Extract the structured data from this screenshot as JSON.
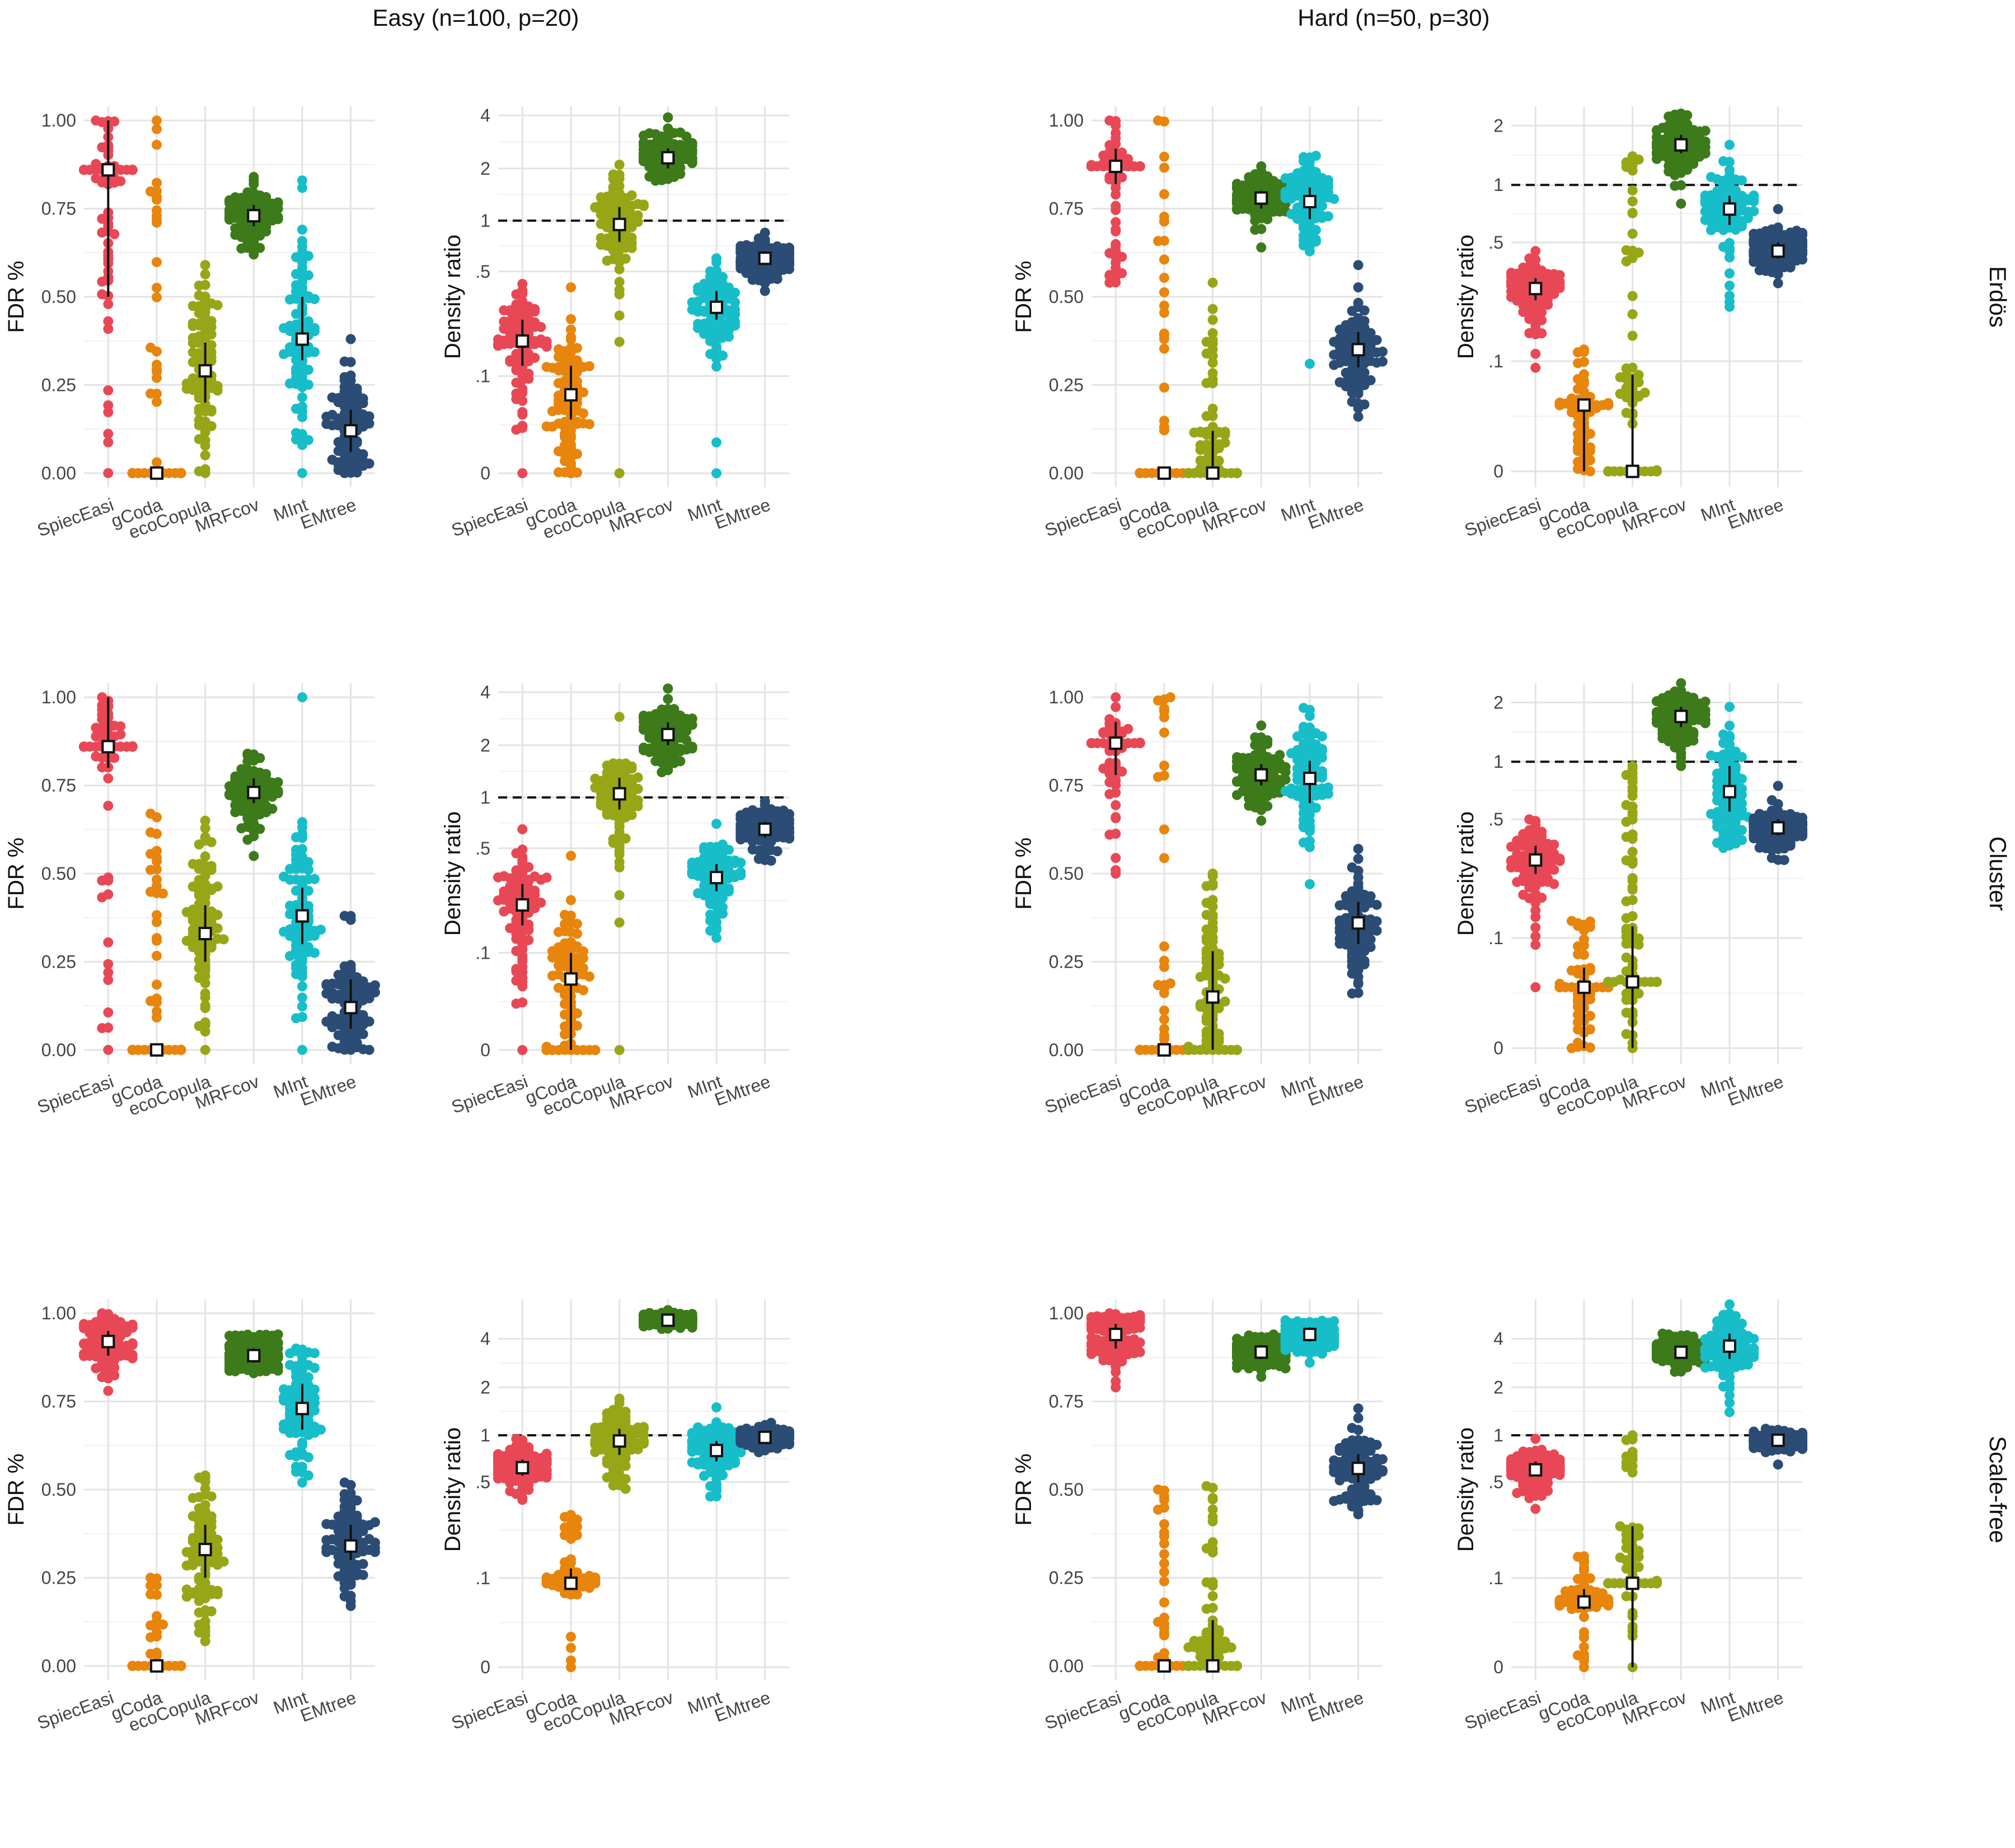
{
  "figure": {
    "column_titles": [
      "Easy (n=100, p=20)",
      "Hard (n=50, p=30)"
    ],
    "row_titles": [
      "Erdös",
      "Cluster",
      "Scale-free"
    ]
  },
  "chart_data": {
    "type": "scatter",
    "subtype": "beeswarm with median and interquartile range",
    "methods": [
      "SpiecEasi",
      "gCoda",
      "ecoCopula",
      "MRFcov",
      "MInt",
      "EMtree"
    ],
    "method_colors": [
      "#E84855",
      "#E8850C",
      "#97A617",
      "#3D7A1A",
      "#17BEC9",
      "#2B4C74"
    ],
    "reference_line": {
      "panel": "Density ratio",
      "y": 1,
      "style": "dashed"
    },
    "axes": {
      "fdr": {
        "ylabel": "FDR %",
        "ylim": [
          0,
          1
        ],
        "ticks": [
          "0.00",
          "0.25",
          "0.50",
          "0.75",
          "1.00"
        ],
        "scale": "linear"
      },
      "density": {
        "ylabel": "Density ratio",
        "scale": "log(x + offset)",
        "tick_labels": [
          "0",
          ".1",
          ".5",
          "1",
          "2",
          "4"
        ]
      }
    },
    "panels": [
      {
        "row": "Erdös",
        "column": "Easy (n=100, p=20)",
        "metric": "fdr",
        "ylim": [
          0,
          1
        ],
        "groups": [
          {
            "method": "SpiecEasi",
            "median": 0.86,
            "q1": 0.5,
            "q3": 1.0,
            "min": 0.0,
            "max": 1.0,
            "spread": "spike"
          },
          {
            "method": "gCoda",
            "median": 0.0,
            "q1": 0.0,
            "q3": 0.0,
            "min": 0.0,
            "max": 1.0,
            "spread": "spike"
          },
          {
            "method": "ecoCopula",
            "median": 0.29,
            "q1": 0.2,
            "q3": 0.37,
            "min": 0.0,
            "max": 0.59,
            "spread": "spread"
          },
          {
            "method": "MRFcov",
            "median": 0.73,
            "q1": 0.7,
            "q3": 0.76,
            "min": 0.62,
            "max": 0.84,
            "spread": "dense"
          },
          {
            "method": "MInt",
            "median": 0.38,
            "q1": 0.32,
            "q3": 0.5,
            "min": 0.0,
            "max": 0.83,
            "spread": "spread"
          },
          {
            "method": "EMtree",
            "median": 0.12,
            "q1": 0.06,
            "q3": 0.18,
            "min": 0.0,
            "max": 0.38,
            "spread": "dense"
          }
        ]
      },
      {
        "row": "Erdös",
        "column": "Easy (n=100, p=20)",
        "metric": "density",
        "yticks": [
          ".1",
          ".5",
          "1",
          "2",
          "4"
        ],
        "ylim_top": 4.5,
        "groups": [
          {
            "method": "SpiecEasi",
            "median": 0.18,
            "q1": 0.12,
            "q3": 0.25,
            "min": 0.0,
            "max": 0.42,
            "spread": "dense"
          },
          {
            "method": "gCoda",
            "median": 0.07,
            "q1": 0.04,
            "q3": 0.12,
            "min": 0.0,
            "max": 0.4,
            "spread": "spread"
          },
          {
            "method": "ecoCopula",
            "median": 0.95,
            "q1": 0.75,
            "q3": 1.2,
            "min": 0.0,
            "max": 2.1,
            "spread": "spread"
          },
          {
            "method": "MRFcov",
            "median": 2.3,
            "q1": 2.0,
            "q3": 2.6,
            "min": 1.7,
            "max": 3.9,
            "spread": "dense"
          },
          {
            "method": "MInt",
            "median": 0.3,
            "q1": 0.25,
            "q3": 0.38,
            "min": 0.0,
            "max": 0.6,
            "spread": "dense"
          },
          {
            "method": "EMtree",
            "median": 0.6,
            "q1": 0.55,
            "q3": 0.66,
            "min": 0.38,
            "max": 0.85,
            "spread": "dense"
          }
        ]
      },
      {
        "row": "Erdös",
        "column": "Hard (n=50, p=30)",
        "metric": "fdr",
        "ylim": [
          0,
          1
        ],
        "groups": [
          {
            "method": "SpiecEasi",
            "median": 0.87,
            "q1": 0.82,
            "q3": 0.92,
            "min": 0.54,
            "max": 1.0,
            "spread": "spike"
          },
          {
            "method": "gCoda",
            "median": 0.0,
            "q1": 0.0,
            "q3": 0.0,
            "min": 0.0,
            "max": 1.0,
            "spread": "spike"
          },
          {
            "method": "ecoCopula",
            "median": 0.0,
            "q1": 0.0,
            "q3": 0.12,
            "min": 0.0,
            "max": 0.54,
            "spread": "spike"
          },
          {
            "method": "MRFcov",
            "median": 0.78,
            "q1": 0.75,
            "q3": 0.8,
            "min": 0.64,
            "max": 0.87,
            "spread": "dense"
          },
          {
            "method": "MInt",
            "median": 0.77,
            "q1": 0.72,
            "q3": 0.81,
            "min": 0.31,
            "max": 0.9,
            "spread": "dense"
          },
          {
            "method": "EMtree",
            "median": 0.35,
            "q1": 0.3,
            "q3": 0.4,
            "min": 0.16,
            "max": 0.59,
            "spread": "dense"
          }
        ]
      },
      {
        "row": "Erdös",
        "column": "Hard (n=50, p=30)",
        "metric": "density",
        "yticks": [
          ".1",
          ".5",
          "1",
          "2"
        ],
        "ylim_top": 2.5,
        "groups": [
          {
            "method": "SpiecEasi",
            "median": 0.28,
            "q1": 0.24,
            "q3": 0.32,
            "min": 0.09,
            "max": 0.45,
            "spread": "dense"
          },
          {
            "method": "gCoda",
            "median": 0.045,
            "q1": 0.0,
            "q3": 0.05,
            "min": 0.0,
            "max": 0.12,
            "spread": "spike"
          },
          {
            "method": "ecoCopula",
            "median": 0.0,
            "q1": 0.0,
            "q3": 0.08,
            "min": 0.0,
            "max": 1.4,
            "spread": "spike"
          },
          {
            "method": "MRFcov",
            "median": 1.6,
            "q1": 1.45,
            "q3": 1.8,
            "min": 0.8,
            "max": 2.3,
            "spread": "dense"
          },
          {
            "method": "MInt",
            "median": 0.75,
            "q1": 0.62,
            "q3": 0.88,
            "min": 0.22,
            "max": 1.6,
            "spread": "dense"
          },
          {
            "method": "EMtree",
            "median": 0.45,
            "q1": 0.41,
            "q3": 0.5,
            "min": 0.3,
            "max": 0.75,
            "spread": "dense"
          }
        ]
      },
      {
        "row": "Cluster",
        "column": "Easy (n=100, p=20)",
        "metric": "fdr",
        "ylim": [
          0,
          1
        ],
        "groups": [
          {
            "method": "SpiecEasi",
            "median": 0.86,
            "q1": 0.8,
            "q3": 1.0,
            "min": 0.0,
            "max": 1.0,
            "spread": "spike"
          },
          {
            "method": "gCoda",
            "median": 0.0,
            "q1": 0.0,
            "q3": 0.0,
            "min": 0.0,
            "max": 0.67,
            "spread": "spike"
          },
          {
            "method": "ecoCopula",
            "median": 0.33,
            "q1": 0.25,
            "q3": 0.41,
            "min": 0.0,
            "max": 0.65,
            "spread": "spread"
          },
          {
            "method": "MRFcov",
            "median": 0.73,
            "q1": 0.7,
            "q3": 0.77,
            "min": 0.55,
            "max": 0.84,
            "spread": "dense"
          },
          {
            "method": "MInt",
            "median": 0.38,
            "q1": 0.3,
            "q3": 0.46,
            "min": 0.0,
            "max": 1.0,
            "spread": "spread"
          },
          {
            "method": "EMtree",
            "median": 0.12,
            "q1": 0.06,
            "q3": 0.2,
            "min": 0.0,
            "max": 0.38,
            "spread": "dense"
          }
        ]
      },
      {
        "row": "Cluster",
        "column": "Easy (n=100, p=20)",
        "metric": "density",
        "yticks": [
          ".1",
          ".5",
          "1",
          "2",
          "4"
        ],
        "ylim_top": 4.5,
        "groups": [
          {
            "method": "SpiecEasi",
            "median": 0.22,
            "q1": 0.16,
            "q3": 0.3,
            "min": 0.0,
            "max": 0.65,
            "spread": "dense"
          },
          {
            "method": "gCoda",
            "median": 0.06,
            "q1": 0.0,
            "q3": 0.1,
            "min": 0.0,
            "max": 0.45,
            "spread": "spread"
          },
          {
            "method": "ecoCopula",
            "median": 1.05,
            "q1": 0.85,
            "q3": 1.3,
            "min": 0.0,
            "max": 2.9,
            "spread": "spread"
          },
          {
            "method": "MRFcov",
            "median": 2.3,
            "q1": 2.0,
            "q3": 2.7,
            "min": 1.4,
            "max": 4.2,
            "spread": "dense"
          },
          {
            "method": "MInt",
            "median": 0.33,
            "q1": 0.27,
            "q3": 0.4,
            "min": 0.13,
            "max": 0.7,
            "spread": "dense"
          },
          {
            "method": "EMtree",
            "median": 0.65,
            "q1": 0.58,
            "q3": 0.72,
            "min": 0.42,
            "max": 0.95,
            "spread": "dense"
          }
        ]
      },
      {
        "row": "Cluster",
        "column": "Hard (n=50, p=30)",
        "metric": "fdr",
        "ylim": [
          0,
          1
        ],
        "groups": [
          {
            "method": "SpiecEasi",
            "median": 0.87,
            "q1": 0.78,
            "q3": 0.93,
            "min": 0.5,
            "max": 1.0,
            "spread": "spike"
          },
          {
            "method": "gCoda",
            "median": 0.0,
            "q1": 0.0,
            "q3": 0.0,
            "min": 0.0,
            "max": 1.0,
            "spread": "spike"
          },
          {
            "method": "ecoCopula",
            "median": 0.15,
            "q1": 0.0,
            "q3": 0.28,
            "min": 0.0,
            "max": 0.5,
            "spread": "spread"
          },
          {
            "method": "MRFcov",
            "median": 0.78,
            "q1": 0.75,
            "q3": 0.81,
            "min": 0.65,
            "max": 0.92,
            "spread": "dense"
          },
          {
            "method": "MInt",
            "median": 0.77,
            "q1": 0.7,
            "q3": 0.82,
            "min": 0.47,
            "max": 0.97,
            "spread": "dense"
          },
          {
            "method": "EMtree",
            "median": 0.36,
            "q1": 0.3,
            "q3": 0.42,
            "min": 0.16,
            "max": 0.57,
            "spread": "dense"
          }
        ]
      },
      {
        "row": "Cluster",
        "column": "Hard (n=50, p=30)",
        "metric": "density",
        "yticks": [
          ".1",
          ".5",
          "1",
          "2"
        ],
        "ylim_top": 2.5,
        "groups": [
          {
            "method": "SpiecEasi",
            "median": 0.3,
            "q1": 0.25,
            "q3": 0.36,
            "min": 0.04,
            "max": 0.5,
            "spread": "dense"
          },
          {
            "method": "gCoda",
            "median": 0.04,
            "q1": 0.0,
            "q3": 0.06,
            "min": 0.0,
            "max": 0.13,
            "spread": "spike"
          },
          {
            "method": "ecoCopula",
            "median": 0.045,
            "q1": 0.0,
            "q3": 0.12,
            "min": 0.0,
            "max": 0.95,
            "spread": "spike"
          },
          {
            "method": "MRFcov",
            "median": 1.7,
            "q1": 1.5,
            "q3": 1.9,
            "min": 0.95,
            "max": 2.5,
            "spread": "dense"
          },
          {
            "method": "MInt",
            "median": 0.7,
            "q1": 0.55,
            "q3": 0.95,
            "min": 0.35,
            "max": 1.9,
            "spread": "dense"
          },
          {
            "method": "EMtree",
            "median": 0.45,
            "q1": 0.41,
            "q3": 0.5,
            "min": 0.3,
            "max": 0.75,
            "spread": "dense"
          }
        ]
      },
      {
        "row": "Scale-free",
        "column": "Easy (n=100, p=20)",
        "metric": "fdr",
        "ylim": [
          0,
          1
        ],
        "groups": [
          {
            "method": "SpiecEasi",
            "median": 0.92,
            "q1": 0.88,
            "q3": 0.95,
            "min": 0.78,
            "max": 1.0,
            "spread": "dense"
          },
          {
            "method": "gCoda",
            "median": 0.0,
            "q1": 0.0,
            "q3": 0.0,
            "min": 0.0,
            "max": 0.25,
            "spread": "spike"
          },
          {
            "method": "ecoCopula",
            "median": 0.33,
            "q1": 0.25,
            "q3": 0.4,
            "min": 0.07,
            "max": 0.54,
            "spread": "spread"
          },
          {
            "method": "MRFcov",
            "median": 0.88,
            "q1": 0.86,
            "q3": 0.9,
            "min": 0.83,
            "max": 0.94,
            "spread": "dense"
          },
          {
            "method": "MInt",
            "median": 0.73,
            "q1": 0.67,
            "q3": 0.8,
            "min": 0.52,
            "max": 0.9,
            "spread": "dense"
          },
          {
            "method": "EMtree",
            "median": 0.34,
            "q1": 0.3,
            "q3": 0.4,
            "min": 0.17,
            "max": 0.52,
            "spread": "dense"
          }
        ]
      },
      {
        "row": "Scale-free",
        "column": "Easy (n=100, p=20)",
        "metric": "density",
        "yticks": [
          ".1",
          ".5",
          "1",
          "2",
          "4"
        ],
        "ylim_top": 7,
        "groups": [
          {
            "method": "SpiecEasi",
            "median": 0.62,
            "q1": 0.55,
            "q3": 0.7,
            "min": 0.38,
            "max": 0.95,
            "spread": "dense"
          },
          {
            "method": "gCoda",
            "median": 0.09,
            "q1": 0.08,
            "q3": 0.12,
            "min": 0.0,
            "max": 0.3,
            "spread": "spike"
          },
          {
            "method": "ecoCopula",
            "median": 0.92,
            "q1": 0.75,
            "q3": 1.1,
            "min": 0.45,
            "max": 1.7,
            "spread": "dense"
          },
          {
            "method": "MRFcov",
            "median": 5.2,
            "q1": 5.0,
            "q3": 5.4,
            "min": 4.6,
            "max": 6.0,
            "spread": "dense"
          },
          {
            "method": "MInt",
            "median": 0.8,
            "q1": 0.68,
            "q3": 0.92,
            "min": 0.4,
            "max": 1.5,
            "spread": "dense"
          },
          {
            "method": "EMtree",
            "median": 0.97,
            "q1": 0.92,
            "q3": 1.02,
            "min": 0.78,
            "max": 1.2,
            "spread": "dense"
          }
        ]
      },
      {
        "row": "Scale-free",
        "column": "Hard (n=50, p=30)",
        "metric": "fdr",
        "ylim": [
          0,
          1
        ],
        "groups": [
          {
            "method": "SpiecEasi",
            "median": 0.94,
            "q1": 0.9,
            "q3": 0.97,
            "min": 0.79,
            "max": 1.0,
            "spread": "dense"
          },
          {
            "method": "gCoda",
            "median": 0.0,
            "q1": 0.0,
            "q3": 0.0,
            "min": 0.0,
            "max": 0.5,
            "spread": "spike"
          },
          {
            "method": "ecoCopula",
            "median": 0.0,
            "q1": 0.0,
            "q3": 0.13,
            "min": 0.0,
            "max": 0.51,
            "spread": "spike"
          },
          {
            "method": "MRFcov",
            "median": 0.89,
            "q1": 0.87,
            "q3": 0.91,
            "min": 0.82,
            "max": 0.94,
            "spread": "dense"
          },
          {
            "method": "MInt",
            "median": 0.94,
            "q1": 0.92,
            "q3": 0.96,
            "min": 0.86,
            "max": 0.98,
            "spread": "dense"
          },
          {
            "method": "EMtree",
            "median": 0.56,
            "q1": 0.52,
            "q3": 0.6,
            "min": 0.43,
            "max": 0.73,
            "spread": "dense"
          }
        ]
      },
      {
        "row": "Scale-free",
        "column": "Hard (n=50, p=30)",
        "metric": "density",
        "yticks": [
          ".1",
          ".5",
          "1",
          "2",
          "4"
        ],
        "ylim_top": 7,
        "groups": [
          {
            "method": "SpiecEasi",
            "median": 0.6,
            "q1": 0.55,
            "q3": 0.68,
            "min": 0.33,
            "max": 0.95,
            "spread": "dense"
          },
          {
            "method": "gCoda",
            "median": 0.06,
            "q1": 0.05,
            "q3": 0.08,
            "min": 0.0,
            "max": 0.15,
            "spread": "spike"
          },
          {
            "method": "ecoCopula",
            "median": 0.09,
            "q1": 0.0,
            "q3": 0.25,
            "min": 0.0,
            "max": 1.0,
            "spread": "spike"
          },
          {
            "method": "MRFcov",
            "median": 3.3,
            "q1": 3.0,
            "q3": 3.6,
            "min": 2.5,
            "max": 4.3,
            "spread": "dense"
          },
          {
            "method": "MInt",
            "median": 3.6,
            "q1": 3.0,
            "q3": 4.3,
            "min": 1.4,
            "max": 6.5,
            "spread": "dense"
          },
          {
            "method": "EMtree",
            "median": 0.93,
            "q1": 0.88,
            "q3": 0.98,
            "min": 0.65,
            "max": 1.1,
            "spread": "dense"
          }
        ]
      }
    ]
  }
}
